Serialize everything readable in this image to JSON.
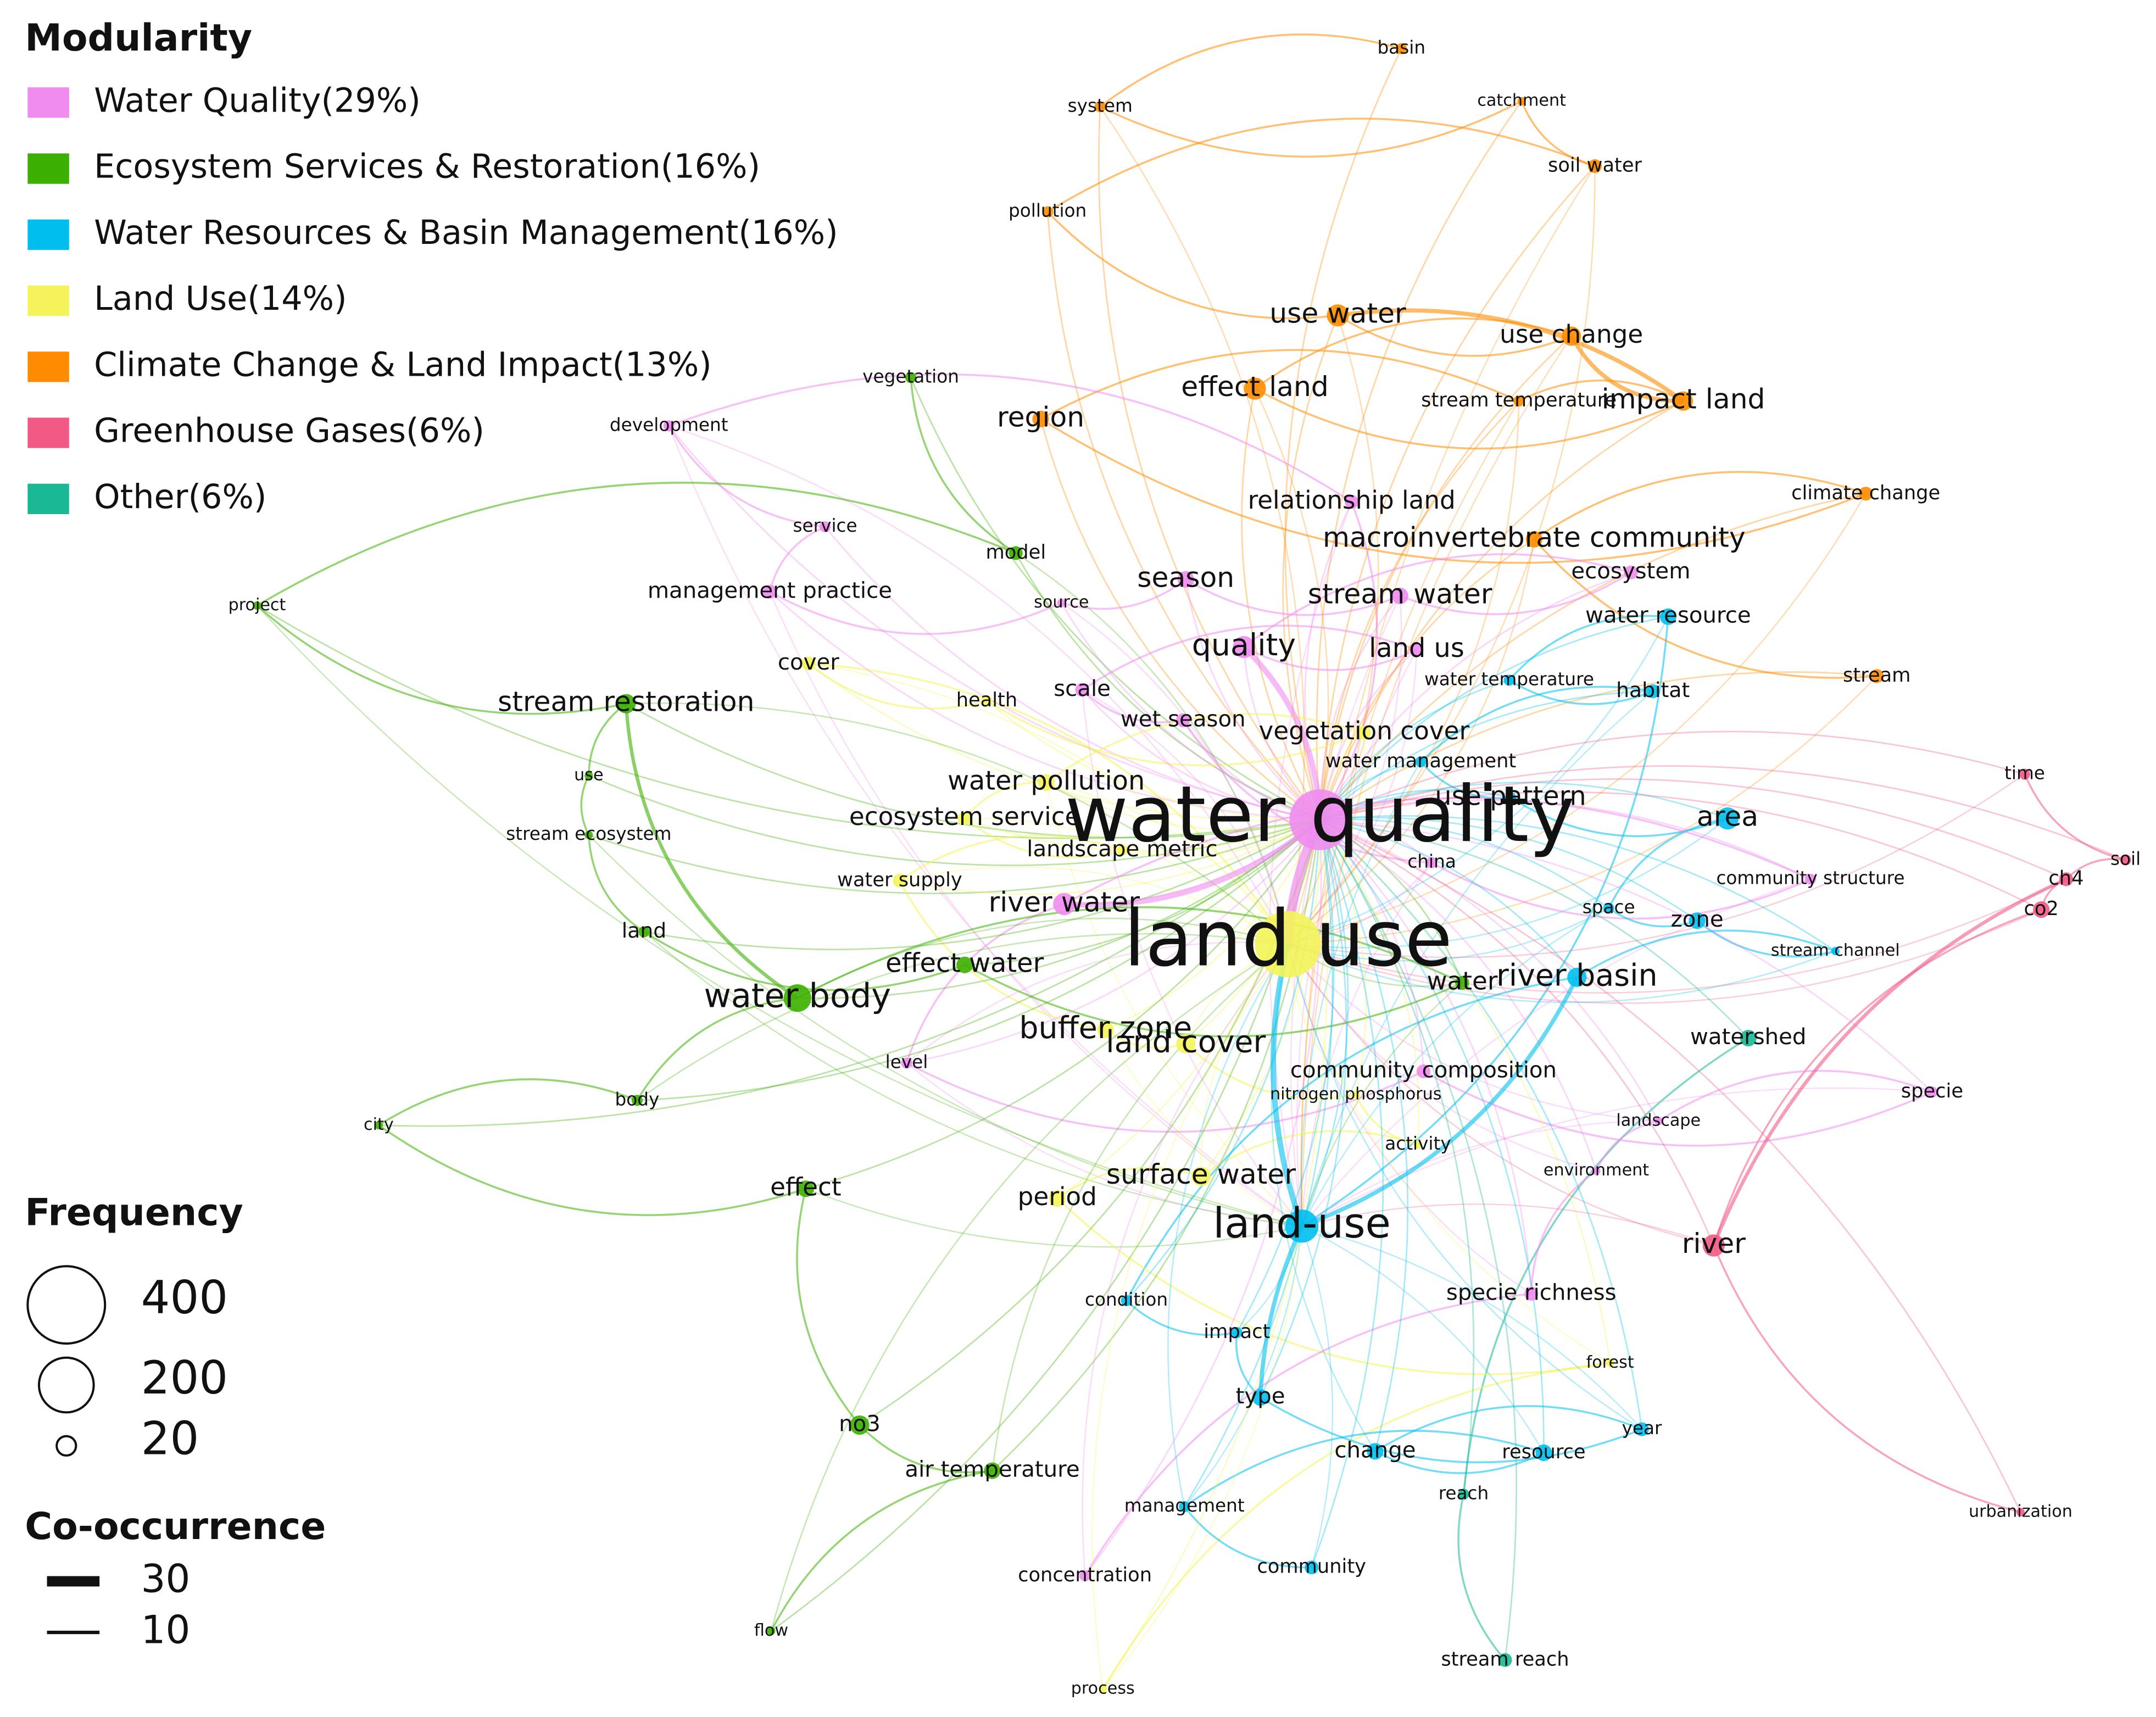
{
  "legend": {
    "modularity_title": "Modularity",
    "modularity": [
      {
        "label": "Water Quality(29%)",
        "color": "#f08cf0"
      },
      {
        "label": "Ecosystem Services & Restoration(16%)",
        "color": "#3cb000"
      },
      {
        "label": "Water Resources & Basin Management(16%)",
        "color": "#00bfef"
      },
      {
        "label": "Land Use(14%)",
        "color": "#f4f45a"
      },
      {
        "label": "Climate Change & Land Impact(13%)",
        "color": "#ff8c00"
      },
      {
        "label": "Greenhouse Gases(6%)",
        "color": "#f25a85"
      },
      {
        "label": "Other(6%)",
        "color": "#1ab894"
      }
    ],
    "frequency_title": "Frequency",
    "frequency": [
      400,
      200,
      20
    ],
    "cooccurrence_title": "Co-occurrence",
    "cooccurrence": [
      30,
      10
    ]
  },
  "nodes": [
    {
      "label": "water quality",
      "group": 0
    },
    {
      "label": "land use",
      "group": 3
    },
    {
      "label": "land-use",
      "group": 2
    },
    {
      "label": "basin",
      "group": 4
    },
    {
      "label": "system",
      "group": 4
    },
    {
      "label": "catchment",
      "group": 4
    },
    {
      "label": "soil water",
      "group": 4
    },
    {
      "label": "pollution",
      "group": 4
    },
    {
      "label": "use water",
      "group": 4
    },
    {
      "label": "use change",
      "group": 4
    },
    {
      "label": "effect land",
      "group": 4
    },
    {
      "label": "impact land",
      "group": 4
    },
    {
      "label": "stream temperature",
      "group": 4
    },
    {
      "label": "region",
      "group": 4
    },
    {
      "label": "climate change",
      "group": 4
    },
    {
      "label": "relationship land",
      "group": 0
    },
    {
      "label": "macroinvertebrate community",
      "group": 4
    },
    {
      "label": "vegetation",
      "group": 1
    },
    {
      "label": "development",
      "group": 0
    },
    {
      "label": "service",
      "group": 0
    },
    {
      "label": "model",
      "group": 1
    },
    {
      "label": "management practice",
      "group": 0
    },
    {
      "label": "source",
      "group": 0
    },
    {
      "label": "season",
      "group": 0
    },
    {
      "label": "stream water",
      "group": 0
    },
    {
      "label": "ecosystem",
      "group": 0
    },
    {
      "label": "water resource",
      "group": 2
    },
    {
      "label": "project",
      "group": 1
    },
    {
      "label": "cover",
      "group": 3
    },
    {
      "label": "quality",
      "group": 0
    },
    {
      "label": "land us",
      "group": 0
    },
    {
      "label": "water temperature",
      "group": 2
    },
    {
      "label": "stream",
      "group": 4
    },
    {
      "label": "habitat",
      "group": 2
    },
    {
      "label": "stream restoration",
      "group": 1
    },
    {
      "label": "health",
      "group": 3
    },
    {
      "label": "scale",
      "group": 0
    },
    {
      "label": "wet season",
      "group": 0
    },
    {
      "label": "vegetation cover",
      "group": 3
    },
    {
      "label": "water management",
      "group": 2
    },
    {
      "label": "time",
      "group": 5
    },
    {
      "label": "use",
      "group": 1
    },
    {
      "label": "water pollution",
      "group": 3
    },
    {
      "label": "use pattern",
      "group": 2
    },
    {
      "label": "ecosystem service",
      "group": 3
    },
    {
      "label": "stream ecosystem",
      "group": 1
    },
    {
      "label": "area",
      "group": 2
    },
    {
      "label": "landscape metric",
      "group": 3
    },
    {
      "label": "china",
      "group": 0
    },
    {
      "label": "soil",
      "group": 5
    },
    {
      "label": "water supply",
      "group": 3
    },
    {
      "label": "community structure",
      "group": 0
    },
    {
      "label": "ch4",
      "group": 5
    },
    {
      "label": "river water",
      "group": 0
    },
    {
      "label": "space",
      "group": 2
    },
    {
      "label": "zone",
      "group": 2
    },
    {
      "label": "co2",
      "group": 5
    },
    {
      "label": "land",
      "group": 1
    },
    {
      "label": "stream channel",
      "group": 2
    },
    {
      "label": "effect water",
      "group": 1
    },
    {
      "label": "water",
      "group": 1
    },
    {
      "label": "river basin",
      "group": 2
    },
    {
      "label": "water body",
      "group": 1
    },
    {
      "label": "buffer zone",
      "group": 3
    },
    {
      "label": "land cover",
      "group": 3
    },
    {
      "label": "watershed",
      "group": 6
    },
    {
      "label": "level",
      "group": 0
    },
    {
      "label": "community composition",
      "group": 0
    },
    {
      "label": "nitrogen phosphorus",
      "group": 3
    },
    {
      "label": "specie",
      "group": 0
    },
    {
      "label": "body",
      "group": 1
    },
    {
      "label": "city",
      "group": 1
    },
    {
      "label": "landscape",
      "group": 0
    },
    {
      "label": "activity",
      "group": 3
    },
    {
      "label": "environment",
      "group": 0
    },
    {
      "label": "effect",
      "group": 1
    },
    {
      "label": "surface water",
      "group": 3
    },
    {
      "label": "period",
      "group": 3
    },
    {
      "label": "river",
      "group": 5
    },
    {
      "label": "condition",
      "group": 2
    },
    {
      "label": "specie richness",
      "group": 0
    },
    {
      "label": "impact",
      "group": 2
    },
    {
      "label": "forest",
      "group": 3
    },
    {
      "label": "type",
      "group": 2
    },
    {
      "label": "year",
      "group": 2
    },
    {
      "label": "no3",
      "group": 1
    },
    {
      "label": "change",
      "group": 2
    },
    {
      "label": "resource",
      "group": 2
    },
    {
      "label": "air temperature",
      "group": 1
    },
    {
      "label": "reach",
      "group": 6
    },
    {
      "label": "management",
      "group": 2
    },
    {
      "label": "urbanization",
      "group": 5
    },
    {
      "label": "concentration",
      "group": 0
    },
    {
      "label": "community",
      "group": 2
    },
    {
      "label": "flow",
      "group": 1
    },
    {
      "label": "stream reach",
      "group": 6
    },
    {
      "label": "process",
      "group": 3
    }
  ]
}
